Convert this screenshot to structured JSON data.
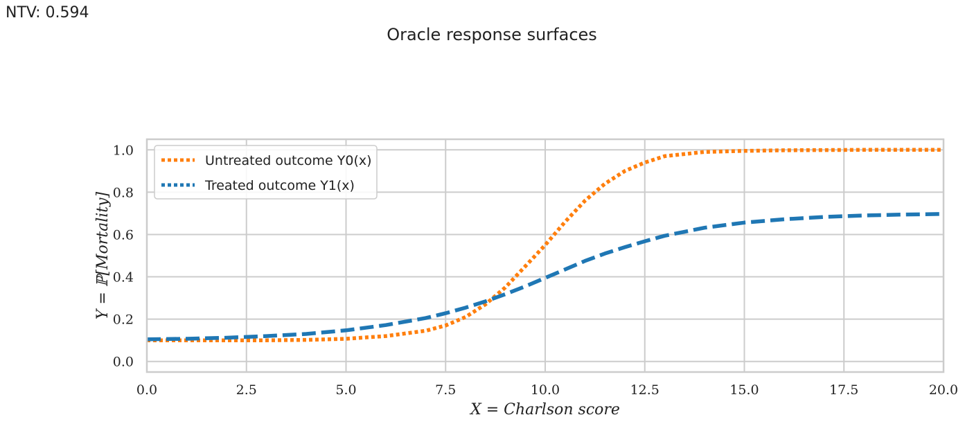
{
  "annotation": {
    "text": "NTV: 0.594"
  },
  "chart_data": {
    "type": "line",
    "title": "Oracle response surfaces",
    "xlabel": "X = Charlson score",
    "ylabel": "Y = ℙ[Mortality]",
    "xlim": [
      0,
      20
    ],
    "ylim": [
      -0.05,
      1.05
    ],
    "xticks": [
      0,
      2.5,
      5,
      7.5,
      10,
      12.5,
      15,
      17.5,
      20
    ],
    "xtick_labels": [
      "0.0",
      "2.5",
      "5.0",
      "7.5",
      "10.0",
      "12.5",
      "15.0",
      "17.5",
      "20.0"
    ],
    "yticks": [
      0,
      0.2,
      0.4,
      0.6,
      0.8,
      1.0
    ],
    "ytick_labels": [
      "0.0",
      "0.2",
      "0.4",
      "0.6",
      "0.8",
      "1.0"
    ],
    "grid": true,
    "legend_position": "top-left",
    "series": [
      {
        "name": "Untreated outcome Y0(x)",
        "style": "dotted",
        "color": "#ff7f0e",
        "x": [
          0,
          1,
          2,
          3,
          4,
          5,
          6,
          7,
          7.5,
          8,
          8.5,
          9,
          9.5,
          10,
          10.5,
          11,
          11.5,
          12,
          12.5,
          13,
          14,
          15,
          16,
          17,
          18,
          19,
          20
        ],
        "y": [
          0.1,
          0.1,
          0.1,
          0.1,
          0.102,
          0.107,
          0.12,
          0.145,
          0.17,
          0.21,
          0.27,
          0.35,
          0.45,
          0.55,
          0.66,
          0.76,
          0.84,
          0.9,
          0.94,
          0.97,
          0.99,
          0.995,
          0.998,
          0.999,
          1.0,
          1.0,
          1.0
        ]
      },
      {
        "name": "Treated outcome Y1(x)",
        "style": "dashed",
        "color": "#1f77b4",
        "x": [
          0,
          1,
          2,
          3,
          4,
          5,
          6,
          7,
          7.5,
          8,
          8.5,
          9,
          9.5,
          10,
          10.5,
          11,
          11.5,
          12,
          12.5,
          13,
          14,
          15,
          16,
          17,
          18,
          19,
          20
        ],
        "y": [
          0.105,
          0.107,
          0.112,
          0.12,
          0.13,
          0.147,
          0.172,
          0.205,
          0.228,
          0.254,
          0.284,
          0.318,
          0.355,
          0.395,
          0.435,
          0.475,
          0.51,
          0.54,
          0.568,
          0.594,
          0.632,
          0.656,
          0.672,
          0.683,
          0.69,
          0.694,
          0.697
        ]
      }
    ]
  }
}
